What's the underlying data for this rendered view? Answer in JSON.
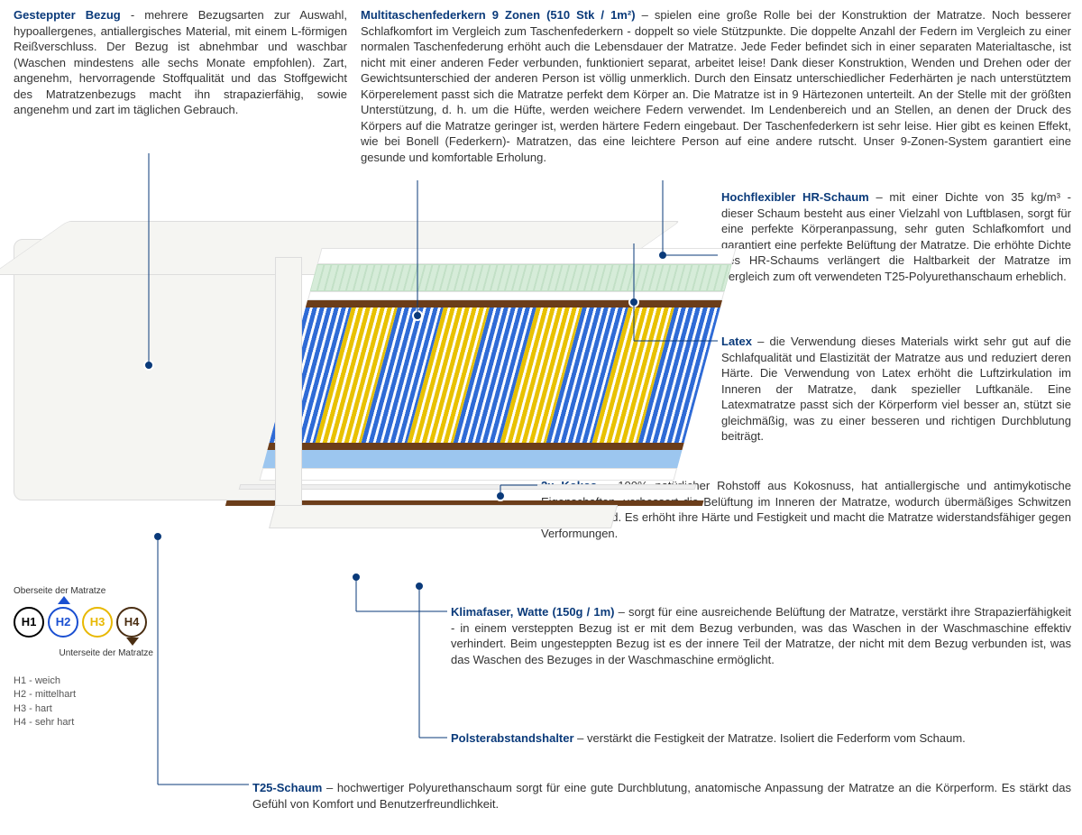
{
  "cover": {
    "title": "Gesteppter Bezug",
    "sep": " - ",
    "body": "mehrere Bezugsarten zur Auswahl, hypoallergenes, antiallergisches Material, mit einem L-förmigen Reißverschluss. Der Bezug ist abnehmbar und waschbar (Waschen mindestens alle sechs Monate empfohlen). Zart, angenehm, hervorragende Stoffqualität und das Stoffgewicht des Matratzenbezugs macht ihn strapazierfähig, sowie angenehm und zart im täglichen Gebrauch."
  },
  "springs": {
    "title": "Multitaschenfederkern 9 Zonen (510 Stk / 1m²)",
    "sep": " – ",
    "body": "spielen eine große Rolle bei der Konstruktion der Matratze. Noch besserer Schlafkomfort im Vergleich zum Taschenfederkern - doppelt so viele Stützpunkte. Die doppelte Anzahl der Federn im Vergleich zu einer normalen Taschenfederung erhöht auch die Lebensdauer der Matratze. Jede Feder befindet sich in einer separaten Materialtasche, ist nicht mit einer anderen Feder verbunden, funktioniert separat, arbeitet leise! Dank dieser Konstruktion, Wenden und Drehen oder der Gewichtsunterschied der anderen Person ist völlig unmerklich. Durch den Einsatz unterschiedlicher Federhärten je nach unterstütztem Körperelement passt sich die Matratze perfekt dem Körper an. Die Matratze ist in 9 Härtezonen unterteilt. An der Stelle mit der größten Unterstützung, d. h. um die Hüfte, werden weichere Federn verwendet. Im Lendenbereich und an Stellen, an denen der Druck des Körpers auf die Matratze geringer ist, werden härtere Federn eingebaut. Der Taschenfederkern ist sehr leise. Hier gibt es keinen Effekt, wie bei Bonell (Federkern)- Matratzen, das eine leichtere Person auf eine andere rutscht. Unser 9-Zonen-System garantiert eine gesunde und komfortable Erholung."
  },
  "hr": {
    "title": "Hochflexibler HR-Schaum",
    "sep": " – ",
    "body": "mit einer Dichte von 35 kg/m³ - dieser Schaum besteht aus einer Vielzahl von Luftblasen, sorgt für eine perfekte Körperanpassung, sehr guten Schlafkomfort und garantiert eine perfekte Belüftung der Matratze. Die erhöhte Dichte des HR-Schaums verlängert die Haltbarkeit der Matratze im Vergleich zum oft verwendeten T25-Polyurethanschaum erheblich."
  },
  "latex": {
    "title": "Latex",
    "sep": " – ",
    "body": "die Verwendung dieses Materials wirkt sehr gut auf die Schlafqualität und Elastizität der Matratze aus und reduziert deren Härte. Die Verwendung von Latex erhöht die Luftzirkulation im Inneren der Matratze, dank spezieller Luftkanäle. Eine Latexmatratze passt sich der Körperform viel besser an, stützt sie gleichmäßig, was zu einer besseren und richtigen Durchblutung beiträgt."
  },
  "kokos": {
    "title": "2x Kokos",
    "sep": " – ",
    "body": "100% natürlicher Rohstoff aus Kokosnuss, hat antiallergische und antimykotische Eigenschaften, verbessert die Belüftung im Inneren der Matratze, wodurch übermäßiges Schwitzen verhindert wird. Es erhöht ihre Härte und Festigkeit und macht die Matratze widerstandsfähiger gegen Verformungen."
  },
  "klima": {
    "title": "Klimafaser, Watte (150g / 1m)",
    "sep": " – ",
    "body": "sorgt für eine ausreichende Belüftung der Matratze, verstärkt ihre Strapazierfähigkeit - in einem versteppten Bezug ist er mit dem Bezug verbunden, was das Waschen in der Waschmaschine effektiv verhindert. Beim ungesteppten Bezug ist es der innere Teil der Matratze, der nicht mit dem Bezug verbunden ist, was das Waschen des Bezuges in der Waschmaschine ermöglicht."
  },
  "polster": {
    "title": "Polsterabstandshalter",
    "sep": " – ",
    "body": "verstärkt die Festigkeit der Matratze. Isoliert die Federform vom Schaum."
  },
  "t25": {
    "title": "T25-Schaum",
    "sep": " – ",
    "body": "hochwertiger Polyurethanschaum sorgt für eine gute Durchblutung, anatomische Anpassung der Matratze an die Körperform. Es stärkt das Gefühl von Komfort und Benutzerfreundlichkeit."
  },
  "legend": {
    "top": "Oberseite der Matratze",
    "bottom": "Unterseite der Matratze",
    "h1": "H1",
    "h2": "H2",
    "h3": "H3",
    "h4": "H4",
    "d1": "H1 - weich",
    "d2": "H2 - mittelhart",
    "d3": "H3 - hart",
    "d4": "H4 - sehr hart"
  },
  "colors": {
    "title": "#0a3a7a",
    "text": "#333333",
    "line": "#0a3a7a",
    "h1": "#000000",
    "h2": "#1a4fd1",
    "h3": "#e8b800",
    "h4": "#4a2e12",
    "spring_blue": "#2f6bd6",
    "spring_yellow": "#e8c100",
    "foam_green": "#d6ecd9",
    "foam_blue": "#9cc6ef",
    "cover_bg": "#f5f5f2",
    "kokos_brown": "#6b3d1a"
  },
  "zones": [
    "B",
    "Y",
    "B",
    "Y",
    "B",
    "Y",
    "B",
    "Y",
    "B"
  ]
}
